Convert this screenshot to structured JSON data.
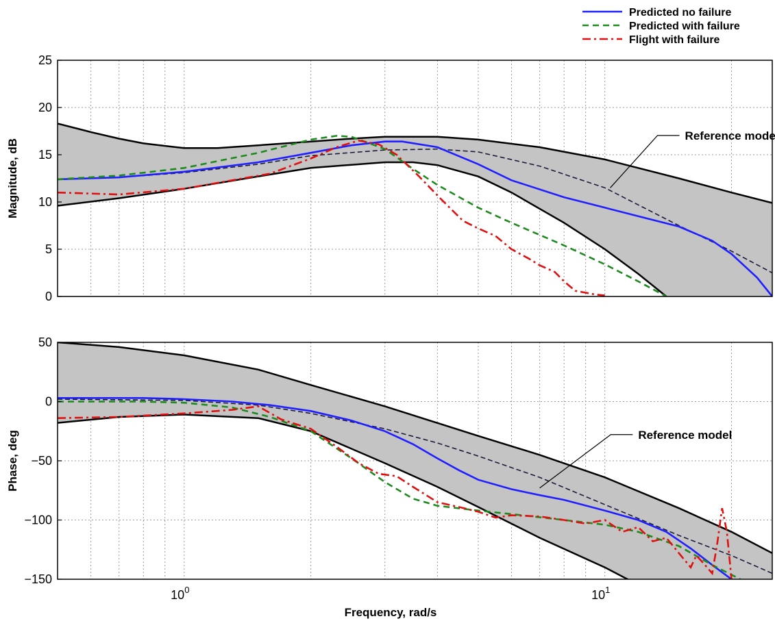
{
  "colors": {
    "predicted_no_failure": "#1f1fff",
    "predicted_with_failure": "#1e8a1e",
    "flight_with_failure": "#e01010",
    "envelope_fill": "#c4c4c4",
    "envelope_edge": "#000000"
  },
  "legend": {
    "placement": "top-right",
    "items": [
      {
        "label": "Predicted no failure",
        "style": "solid",
        "color_key": "predicted_no_failure"
      },
      {
        "label": "Predicted with failure",
        "style": "dashed",
        "color_key": "predicted_with_failure"
      },
      {
        "label": "Flight with failure",
        "style": "dash-dot",
        "color_key": "flight_with_failure"
      }
    ]
  },
  "chart_data": [
    {
      "type": "line",
      "panel": "magnitude",
      "xlabel": "",
      "ylabel": "Magnitude, dB",
      "xscale": "log",
      "xlim": [
        0.5,
        25
      ],
      "ylim": [
        0,
        25
      ],
      "yticks": [
        0,
        5,
        10,
        15,
        20,
        25
      ],
      "ytick_labels": [
        "0",
        "5",
        "10",
        "15",
        "20",
        "25"
      ],
      "grid": true,
      "annotation": {
        "text": "Reference model",
        "arrow_to": [
          10.3,
          11.5
        ],
        "text_at": [
          15.5,
          17.4
        ]
      },
      "envelope": {
        "upper": [
          [
            0.5,
            18.3
          ],
          [
            0.6,
            17.4
          ],
          [
            0.7,
            16.7
          ],
          [
            0.8,
            16.2
          ],
          [
            1.0,
            15.7
          ],
          [
            1.2,
            15.7
          ],
          [
            1.5,
            16.0
          ],
          [
            2.0,
            16.4
          ],
          [
            2.5,
            16.7
          ],
          [
            3.0,
            16.9
          ],
          [
            4.0,
            16.9
          ],
          [
            5.0,
            16.6
          ],
          [
            7.0,
            15.8
          ],
          [
            10.0,
            14.5
          ],
          [
            15.0,
            12.5
          ],
          [
            20.0,
            11.0
          ],
          [
            25.0,
            9.9
          ]
        ],
        "lower": [
          [
            0.5,
            9.6
          ],
          [
            0.7,
            10.4
          ],
          [
            1.0,
            11.4
          ],
          [
            1.5,
            12.7
          ],
          [
            2.0,
            13.6
          ],
          [
            3.0,
            14.2
          ],
          [
            3.5,
            14.2
          ],
          [
            4.0,
            13.9
          ],
          [
            5.0,
            12.7
          ],
          [
            6.0,
            11.0
          ],
          [
            8.0,
            7.8
          ],
          [
            10.0,
            5.0
          ],
          [
            12.0,
            2.4
          ],
          [
            14.0,
            0.0
          ]
        ]
      },
      "reference_model": [
        [
          0.5,
          12.4
        ],
        [
          0.7,
          12.6
        ],
        [
          1.0,
          13.1
        ],
        [
          1.5,
          14.0
        ],
        [
          2.0,
          14.9
        ],
        [
          3.0,
          15.5
        ],
        [
          4.0,
          15.6
        ],
        [
          5.0,
          15.3
        ],
        [
          7.0,
          13.8
        ],
        [
          10.0,
          11.5
        ],
        [
          15.0,
          7.5
        ],
        [
          20.0,
          4.8
        ],
        [
          25.0,
          2.5
        ]
      ],
      "series": [
        {
          "name": "Predicted no failure",
          "color_key": "predicted_no_failure",
          "style": "solid",
          "points": [
            [
              0.5,
              12.4
            ],
            [
              0.7,
              12.6
            ],
            [
              1.0,
              13.2
            ],
            [
              1.5,
              14.2
            ],
            [
              2.0,
              15.2
            ],
            [
              2.5,
              16.0
            ],
            [
              3.0,
              16.4
            ],
            [
              3.3,
              16.4
            ],
            [
              4.0,
              15.8
            ],
            [
              5.0,
              14.0
            ],
            [
              6.0,
              12.3
            ],
            [
              8.0,
              10.5
            ],
            [
              10.0,
              9.4
            ],
            [
              12.0,
              8.5
            ],
            [
              15.0,
              7.4
            ],
            [
              18.0,
              5.9
            ],
            [
              20.0,
              4.5
            ],
            [
              23.0,
              2.0
            ],
            [
              25.0,
              0.0
            ]
          ]
        },
        {
          "name": "Predicted with failure",
          "color_key": "predicted_with_failure",
          "style": "dashed",
          "points": [
            [
              0.5,
              12.4
            ],
            [
              0.7,
              12.8
            ],
            [
              1.0,
              13.6
            ],
            [
              1.5,
              15.2
            ],
            [
              2.0,
              16.6
            ],
            [
              2.3,
              17.0
            ],
            [
              2.5,
              16.9
            ],
            [
              3.0,
              15.6
            ],
            [
              3.5,
              13.5
            ],
            [
              4.0,
              11.8
            ],
            [
              5.0,
              9.4
            ],
            [
              6.0,
              7.8
            ],
            [
              8.0,
              5.4
            ],
            [
              10.0,
              3.4
            ],
            [
              12.0,
              1.6
            ],
            [
              14.0,
              0.0
            ]
          ]
        },
        {
          "name": "Flight with failure",
          "color_key": "flight_with_failure",
          "style": "dash-dot",
          "points": [
            [
              0.5,
              11.0
            ],
            [
              0.7,
              10.8
            ],
            [
              1.0,
              11.4
            ],
            [
              1.3,
              12.3
            ],
            [
              1.6,
              13.0
            ],
            [
              2.0,
              14.6
            ],
            [
              2.3,
              15.8
            ],
            [
              2.6,
              16.5
            ],
            [
              2.9,
              16.1
            ],
            [
              3.2,
              15.0
            ],
            [
              3.6,
              12.8
            ],
            [
              4.1,
              10.2
            ],
            [
              4.6,
              8.0
            ],
            [
              5.0,
              7.2
            ],
            [
              5.5,
              6.4
            ],
            [
              6.0,
              5.0
            ],
            [
              6.6,
              4.0
            ],
            [
              7.0,
              3.3
            ],
            [
              7.6,
              2.6
            ],
            [
              8.0,
              1.6
            ],
            [
              8.5,
              0.6
            ],
            [
              9.5,
              0.2
            ],
            [
              10.0,
              0.1
            ]
          ]
        }
      ]
    },
    {
      "type": "line",
      "panel": "phase",
      "xlabel": "Frequency, rad/s",
      "ylabel": "Phase, deg",
      "xscale": "log",
      "xlim": [
        0.5,
        25
      ],
      "ylim": [
        -150,
        50
      ],
      "yticks": [
        -150,
        -100,
        -50,
        0,
        50
      ],
      "ytick_labels": [
        "−150",
        "−100",
        "−50",
        "0",
        "50"
      ],
      "xticks": [
        1,
        10
      ],
      "xtick_labels": [
        {
          "base": "10",
          "exp": "0"
        },
        {
          "base": "10",
          "exp": "1"
        }
      ],
      "grid": true,
      "annotation": {
        "text": "Reference model",
        "arrow_to": [
          7.0,
          -73
        ],
        "text_at": [
          12.0,
          -25
        ]
      },
      "envelope": {
        "upper": [
          [
            0.5,
            50
          ],
          [
            0.7,
            46
          ],
          [
            1.0,
            39
          ],
          [
            1.5,
            27
          ],
          [
            2.0,
            14
          ],
          [
            3.0,
            -4
          ],
          [
            5.0,
            -29
          ],
          [
            7.0,
            -45
          ],
          [
            10.0,
            -64
          ],
          [
            15.0,
            -90
          ],
          [
            20.0,
            -110
          ],
          [
            25.0,
            -128
          ]
        ],
        "lower": [
          [
            0.5,
            -18
          ],
          [
            0.7,
            -13
          ],
          [
            1.0,
            -11
          ],
          [
            1.5,
            -14
          ],
          [
            2.0,
            -25
          ],
          [
            3.0,
            -52
          ],
          [
            4.0,
            -72
          ],
          [
            5.0,
            -89
          ],
          [
            7.0,
            -115
          ],
          [
            10.0,
            -140
          ],
          [
            12.5,
            -158
          ]
        ]
      },
      "reference_model": [
        [
          0.5,
          2
        ],
        [
          1.0,
          1
        ],
        [
          1.5,
          -3
        ],
        [
          2.0,
          -10
        ],
        [
          3.0,
          -23
        ],
        [
          4.0,
          -35
        ],
        [
          5.0,
          -46
        ],
        [
          7.0,
          -64
        ],
        [
          10.0,
          -87
        ],
        [
          15.0,
          -113
        ],
        [
          20.0,
          -130
        ],
        [
          25.0,
          -145
        ]
      ],
      "series": [
        {
          "name": "Predicted no failure",
          "color_key": "predicted_no_failure",
          "style": "solid",
          "points": [
            [
              0.5,
              3
            ],
            [
              0.8,
              3
            ],
            [
              1.0,
              2
            ],
            [
              1.3,
              0
            ],
            [
              1.6,
              -3
            ],
            [
              2.0,
              -8
            ],
            [
              2.5,
              -16
            ],
            [
              3.0,
              -25
            ],
            [
              3.5,
              -36
            ],
            [
              4.0,
              -48
            ],
            [
              4.5,
              -58
            ],
            [
              5.0,
              -66
            ],
            [
              6.0,
              -74
            ],
            [
              7.0,
              -79
            ],
            [
              8.0,
              -83
            ],
            [
              10.0,
              -92
            ],
            [
              12.0,
              -100
            ],
            [
              14.0,
              -110
            ],
            [
              16.0,
              -124
            ],
            [
              18.0,
              -138
            ],
            [
              20.0,
              -150
            ]
          ]
        },
        {
          "name": "Predicted with failure",
          "color_key": "predicted_with_failure",
          "style": "dashed",
          "points": [
            [
              0.5,
              0
            ],
            [
              0.8,
              0
            ],
            [
              1.0,
              -1
            ],
            [
              1.3,
              -5
            ],
            [
              1.6,
              -13
            ],
            [
              2.0,
              -25
            ],
            [
              2.5,
              -48
            ],
            [
              3.0,
              -68
            ],
            [
              3.5,
              -82
            ],
            [
              4.0,
              -88
            ],
            [
              5.0,
              -92
            ],
            [
              6.0,
              -95
            ],
            [
              8.0,
              -100
            ],
            [
              10.0,
              -104
            ],
            [
              12.0,
              -110
            ],
            [
              15.0,
              -122
            ],
            [
              18.0,
              -138
            ],
            [
              21.0,
              -150
            ]
          ]
        },
        {
          "name": "Flight with failure",
          "color_key": "flight_with_failure",
          "style": "dash-dot",
          "points": [
            [
              0.5,
              -14
            ],
            [
              0.7,
              -13
            ],
            [
              1.0,
              -10
            ],
            [
              1.3,
              -7
            ],
            [
              1.5,
              -4
            ],
            [
              1.7,
              -15
            ],
            [
              2.0,
              -23
            ],
            [
              2.3,
              -38
            ],
            [
              2.6,
              -52
            ],
            [
              2.9,
              -61
            ],
            [
              3.2,
              -63
            ],
            [
              3.5,
              -72
            ],
            [
              4.0,
              -85
            ],
            [
              4.5,
              -89
            ],
            [
              5.0,
              -93
            ],
            [
              5.5,
              -98
            ],
            [
              6.0,
              -96
            ],
            [
              7.0,
              -97
            ],
            [
              8.0,
              -100
            ],
            [
              9.0,
              -103
            ],
            [
              10.0,
              -100
            ],
            [
              11.0,
              -110
            ],
            [
              12.0,
              -106
            ],
            [
              13.0,
              -118
            ],
            [
              14.0,
              -115
            ],
            [
              15.0,
              -128
            ],
            [
              16.0,
              -140
            ],
            [
              16.5,
              -130
            ],
            [
              17.0,
              -135
            ],
            [
              18.0,
              -145
            ],
            [
              18.5,
              -120
            ],
            [
              19.0,
              -90
            ],
            [
              19.5,
              -110
            ],
            [
              20.0,
              -150
            ]
          ]
        }
      ]
    }
  ]
}
